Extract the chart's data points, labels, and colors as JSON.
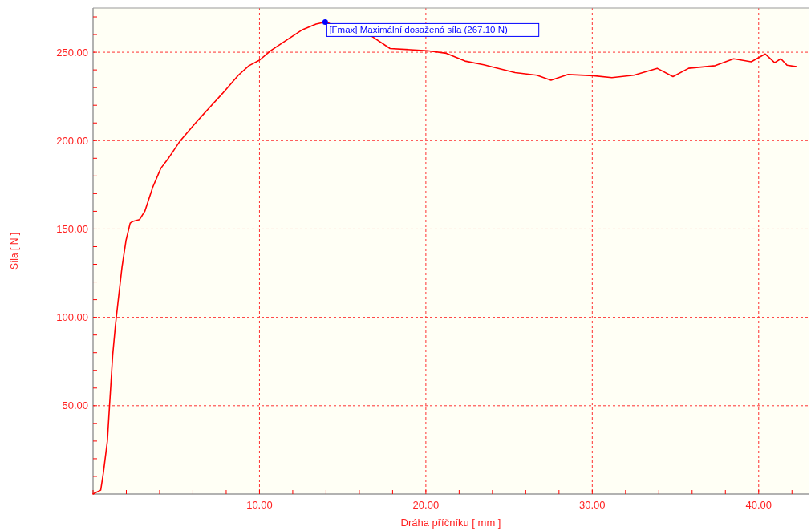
{
  "chart_data": {
    "type": "line",
    "xlabel": "Dráha příčníku [ mm ]",
    "ylabel": "Síla [ N ]",
    "xlim": [
      0,
      43
    ],
    "ylim": [
      0,
      275
    ],
    "xticks": [
      {
        "value": 0,
        "label": null
      },
      {
        "value": 2,
        "label": null
      },
      {
        "value": 4,
        "label": null
      },
      {
        "value": 6,
        "label": null
      },
      {
        "value": 8,
        "label": null
      },
      {
        "value": 10,
        "label": "10.00"
      },
      {
        "value": 12,
        "label": null
      },
      {
        "value": 14,
        "label": null
      },
      {
        "value": 16,
        "label": null
      },
      {
        "value": 18,
        "label": null
      },
      {
        "value": 20,
        "label": "20.00"
      },
      {
        "value": 22,
        "label": null
      },
      {
        "value": 24,
        "label": null
      },
      {
        "value": 26,
        "label": null
      },
      {
        "value": 28,
        "label": null
      },
      {
        "value": 30,
        "label": "30.00"
      },
      {
        "value": 32,
        "label": null
      },
      {
        "value": 34,
        "label": null
      },
      {
        "value": 36,
        "label": null
      },
      {
        "value": 38,
        "label": null
      },
      {
        "value": 40,
        "label": "40.00"
      },
      {
        "value": 42,
        "label": null
      }
    ],
    "yticks": [
      {
        "value": 10,
        "label": null
      },
      {
        "value": 20,
        "label": null
      },
      {
        "value": 30,
        "label": null
      },
      {
        "value": 40,
        "label": null
      },
      {
        "value": 50,
        "label": "50.00"
      },
      {
        "value": 60,
        "label": null
      },
      {
        "value": 70,
        "label": null
      },
      {
        "value": 80,
        "label": null
      },
      {
        "value": 90,
        "label": null
      },
      {
        "value": 100,
        "label": "100.00"
      },
      {
        "value": 110,
        "label": null
      },
      {
        "value": 120,
        "label": null
      },
      {
        "value": 130,
        "label": null
      },
      {
        "value": 140,
        "label": null
      },
      {
        "value": 150,
        "label": "150.00"
      },
      {
        "value": 160,
        "label": null
      },
      {
        "value": 170,
        "label": null
      },
      {
        "value": 180,
        "label": null
      },
      {
        "value": 190,
        "label": null
      },
      {
        "value": 200,
        "label": "200.00"
      },
      {
        "value": 210,
        "label": null
      },
      {
        "value": 220,
        "label": null
      },
      {
        "value": 230,
        "label": null
      },
      {
        "value": 240,
        "label": null
      },
      {
        "value": 250,
        "label": "250.00"
      },
      {
        "value": 260,
        "label": null
      },
      {
        "value": 270,
        "label": null
      }
    ],
    "grid": true,
    "annotations": [
      {
        "text": "[Fmax] Maximální dosažená síla (267.10 N)",
        "x": 13.95,
        "y": 267.1
      }
    ],
    "series": [
      {
        "color": "#ff0000",
        "x": [
          0,
          0.13,
          0.46,
          0.62,
          0.86,
          0.99,
          1.18,
          1.34,
          1.5,
          1.74,
          1.98,
          2.23,
          2.39,
          2.79,
          3.11,
          3.59,
          4.07,
          4.55,
          5.2,
          6.16,
          6.96,
          7.77,
          8.73,
          9.37,
          10.0,
          10.66,
          11.62,
          12.59,
          13.4,
          13.95,
          16.72,
          17.85,
          20.1,
          21.23,
          22.35,
          23.48,
          25.36,
          26.67,
          27.52,
          28.55,
          30.06,
          31.18,
          32.5,
          33.9,
          34.85,
          35.79,
          37.39,
          38.5,
          39.55,
          40.4,
          40.96,
          41.33,
          41.7,
          42.27
        ],
        "values": [
          0,
          0.7,
          2.2,
          12,
          30,
          50,
          78.6,
          95,
          108.7,
          128.5,
          143.5,
          153.3,
          154.3,
          155.3,
          160,
          173.7,
          184.3,
          190.3,
          199.4,
          210,
          218.3,
          226.6,
          237,
          242.4,
          245.5,
          250.8,
          256.8,
          262.8,
          265.9,
          267.1,
          259.2,
          252.1,
          250.8,
          249.4,
          245,
          242.9,
          238.5,
          237,
          234.2,
          237.4,
          236.7,
          235.6,
          237,
          240.9,
          236.2,
          240.9,
          242.4,
          246.3,
          244.6,
          249,
          244.1,
          246.3,
          242.7,
          241.8
        ]
      }
    ]
  }
}
